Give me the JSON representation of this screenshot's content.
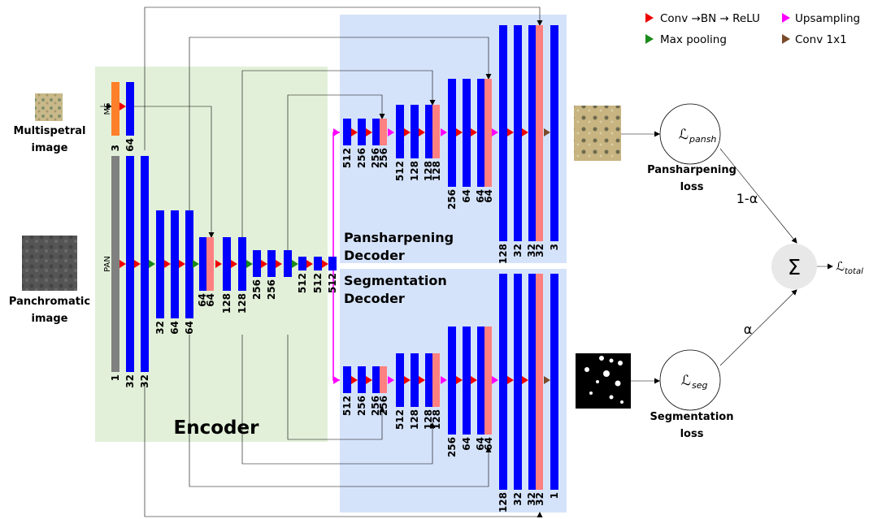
{
  "legend": {
    "conv": "Conv →BN → ReLU",
    "upsampling": "Upsampling",
    "maxpool": "Max pooling",
    "conv1x1": "Conv 1x1"
  },
  "inputs": {
    "ms_label_1": "Multispetral",
    "ms_label_2": "image",
    "pan_label_1": "Panchromatic",
    "pan_label_2": "image",
    "ms_tag": "MS",
    "pan_tag": "PAN"
  },
  "sections": {
    "encoder": "Encoder",
    "pan_decoder_1": "Pansharpening",
    "pan_decoder_2": "Decoder",
    "seg_decoder_1": "Segmentation",
    "seg_decoder_2": "Decoder"
  },
  "outputs": {
    "pan_loss_1": "Pansharpening",
    "pan_loss_2": "loss",
    "seg_loss_1": "Segmentation",
    "seg_loss_2": "loss",
    "weight_pan": "1-α",
    "weight_seg": "α",
    "sum_symbol": "Σ"
  },
  "math": {
    "l_pansh_sym": "ℒ",
    "l_pansh_sub": "pansh",
    "l_seg_sym": "ℒ",
    "l_seg_sub": "seg",
    "l_total_sym": "ℒ",
    "l_total_sub": "total"
  },
  "channels": {
    "ms_input": "3",
    "ms_conv": "64",
    "enc": [
      "1",
      "32",
      "32",
      "32",
      "64",
      "64",
      "64",
      "64",
      "128",
      "128",
      "256",
      "256",
      "512",
      "512",
      "512"
    ],
    "pan_dec": [
      "512",
      "256",
      "256",
      "256",
      "512",
      "128",
      "128",
      "128",
      "256",
      "64",
      "64",
      "64",
      "128",
      "32",
      "32",
      "32",
      "3"
    ],
    "seg_dec": [
      "512",
      "256",
      "256",
      "256",
      "512",
      "128",
      "128",
      "128",
      "256",
      "64",
      "64",
      "64",
      "128",
      "32",
      "32",
      "32",
      "1"
    ]
  },
  "colors": {
    "encoder_bg": "#e2f0d9",
    "decoder_bg": "#d5e3fa",
    "block": "#0000ff",
    "skip": "#ff8080",
    "pan_input": "#808080",
    "ms_input": "#ff7f2a",
    "conv": "#ee0000",
    "maxpool": "#1a8a1a",
    "upsampling": "#ff00ff",
    "conv1x1": "#7a4a2a",
    "sum_node": "#e8e8e8"
  }
}
